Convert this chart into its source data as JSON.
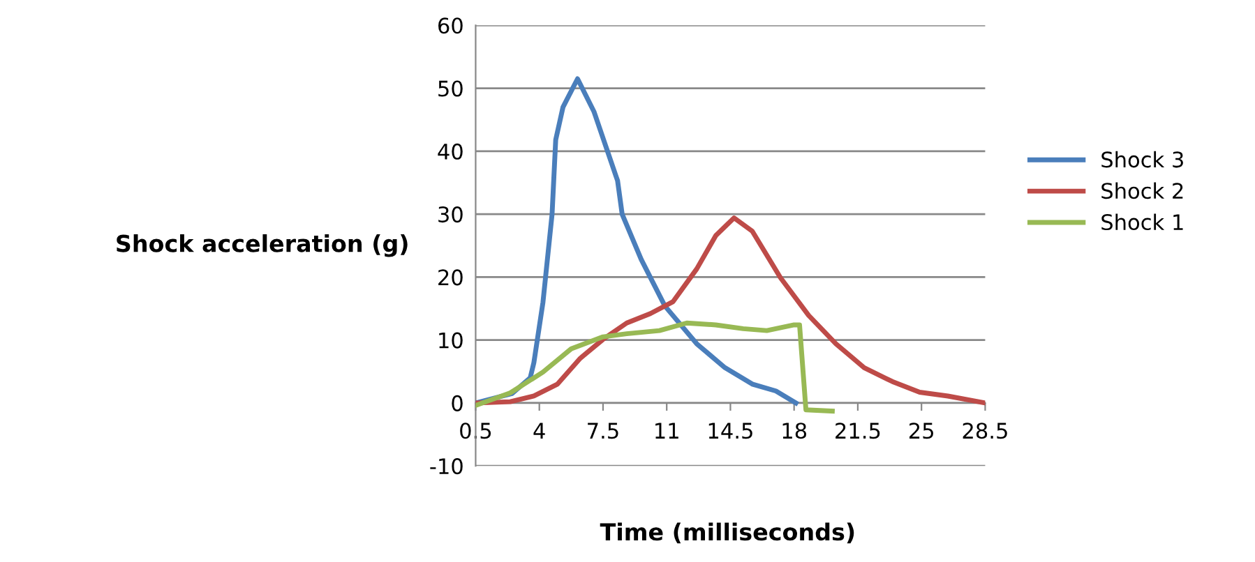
{
  "chart_data": {
    "type": "line",
    "xlabel": "Time (milliseconds)",
    "ylabel": "Shock acceleration (g)",
    "xlim": [
      0.5,
      28.5
    ],
    "xticks": [
      0.5,
      4,
      7.5,
      11,
      14.5,
      18,
      21.5,
      25,
      28.5
    ],
    "ylim": [
      -10,
      60
    ],
    "yticks": [
      -10,
      0,
      10,
      20,
      30,
      40,
      50,
      60
    ],
    "grid": "y",
    "legend": "right",
    "line_style": "solid",
    "marker": "none",
    "series": [
      {
        "name": "Shock 3",
        "color": "#4a7ebb",
        "x": [
          0.5,
          2.5,
          3.5,
          3.7,
          4.2,
          4.7,
          4.9,
          5.3,
          6.1,
          7.0,
          8.3,
          8.55,
          9.6,
          10.9,
          12.65,
          14.2,
          15.7,
          17.0,
          18.1
        ],
        "values": [
          0,
          1.5,
          4,
          6.4,
          16,
          30,
          41.8,
          47,
          51.5,
          46.3,
          35.3,
          30,
          22.8,
          15.4,
          9.4,
          5.6,
          3.0,
          1.9,
          0
        ]
      },
      {
        "name": "Shock 2",
        "color": "#be4b48",
        "x": [
          0.5,
          2.4,
          3.7,
          5.0,
          6.25,
          7.5,
          8.8,
          10.1,
          11.35,
          12.65,
          13.7,
          14.7,
          15.7,
          17.25,
          18.8,
          20.3,
          21.85,
          23.4,
          24.9,
          26.45,
          28.5
        ],
        "values": [
          0,
          0.2,
          1.1,
          3.0,
          7.1,
          10.1,
          12.7,
          14.2,
          16.1,
          21.3,
          26.6,
          29.4,
          27.3,
          19.9,
          13.9,
          9.4,
          5.6,
          3.4,
          1.7,
          1.1,
          0
        ]
      },
      {
        "name": "Shock 1",
        "color": "#98b954",
        "x": [
          0.5,
          2.4,
          4.2,
          5.75,
          7.5,
          8.8,
          10.6,
          12.1,
          13.7,
          15.2,
          16.5,
          18.0,
          18.3,
          18.65,
          20.1
        ],
        "values": [
          -0.4,
          1.6,
          4.9,
          8.6,
          10.5,
          11.0,
          11.5,
          12.7,
          12.4,
          11.8,
          11.5,
          12.4,
          12.4,
          -1.1,
          -1.3
        ]
      }
    ]
  }
}
